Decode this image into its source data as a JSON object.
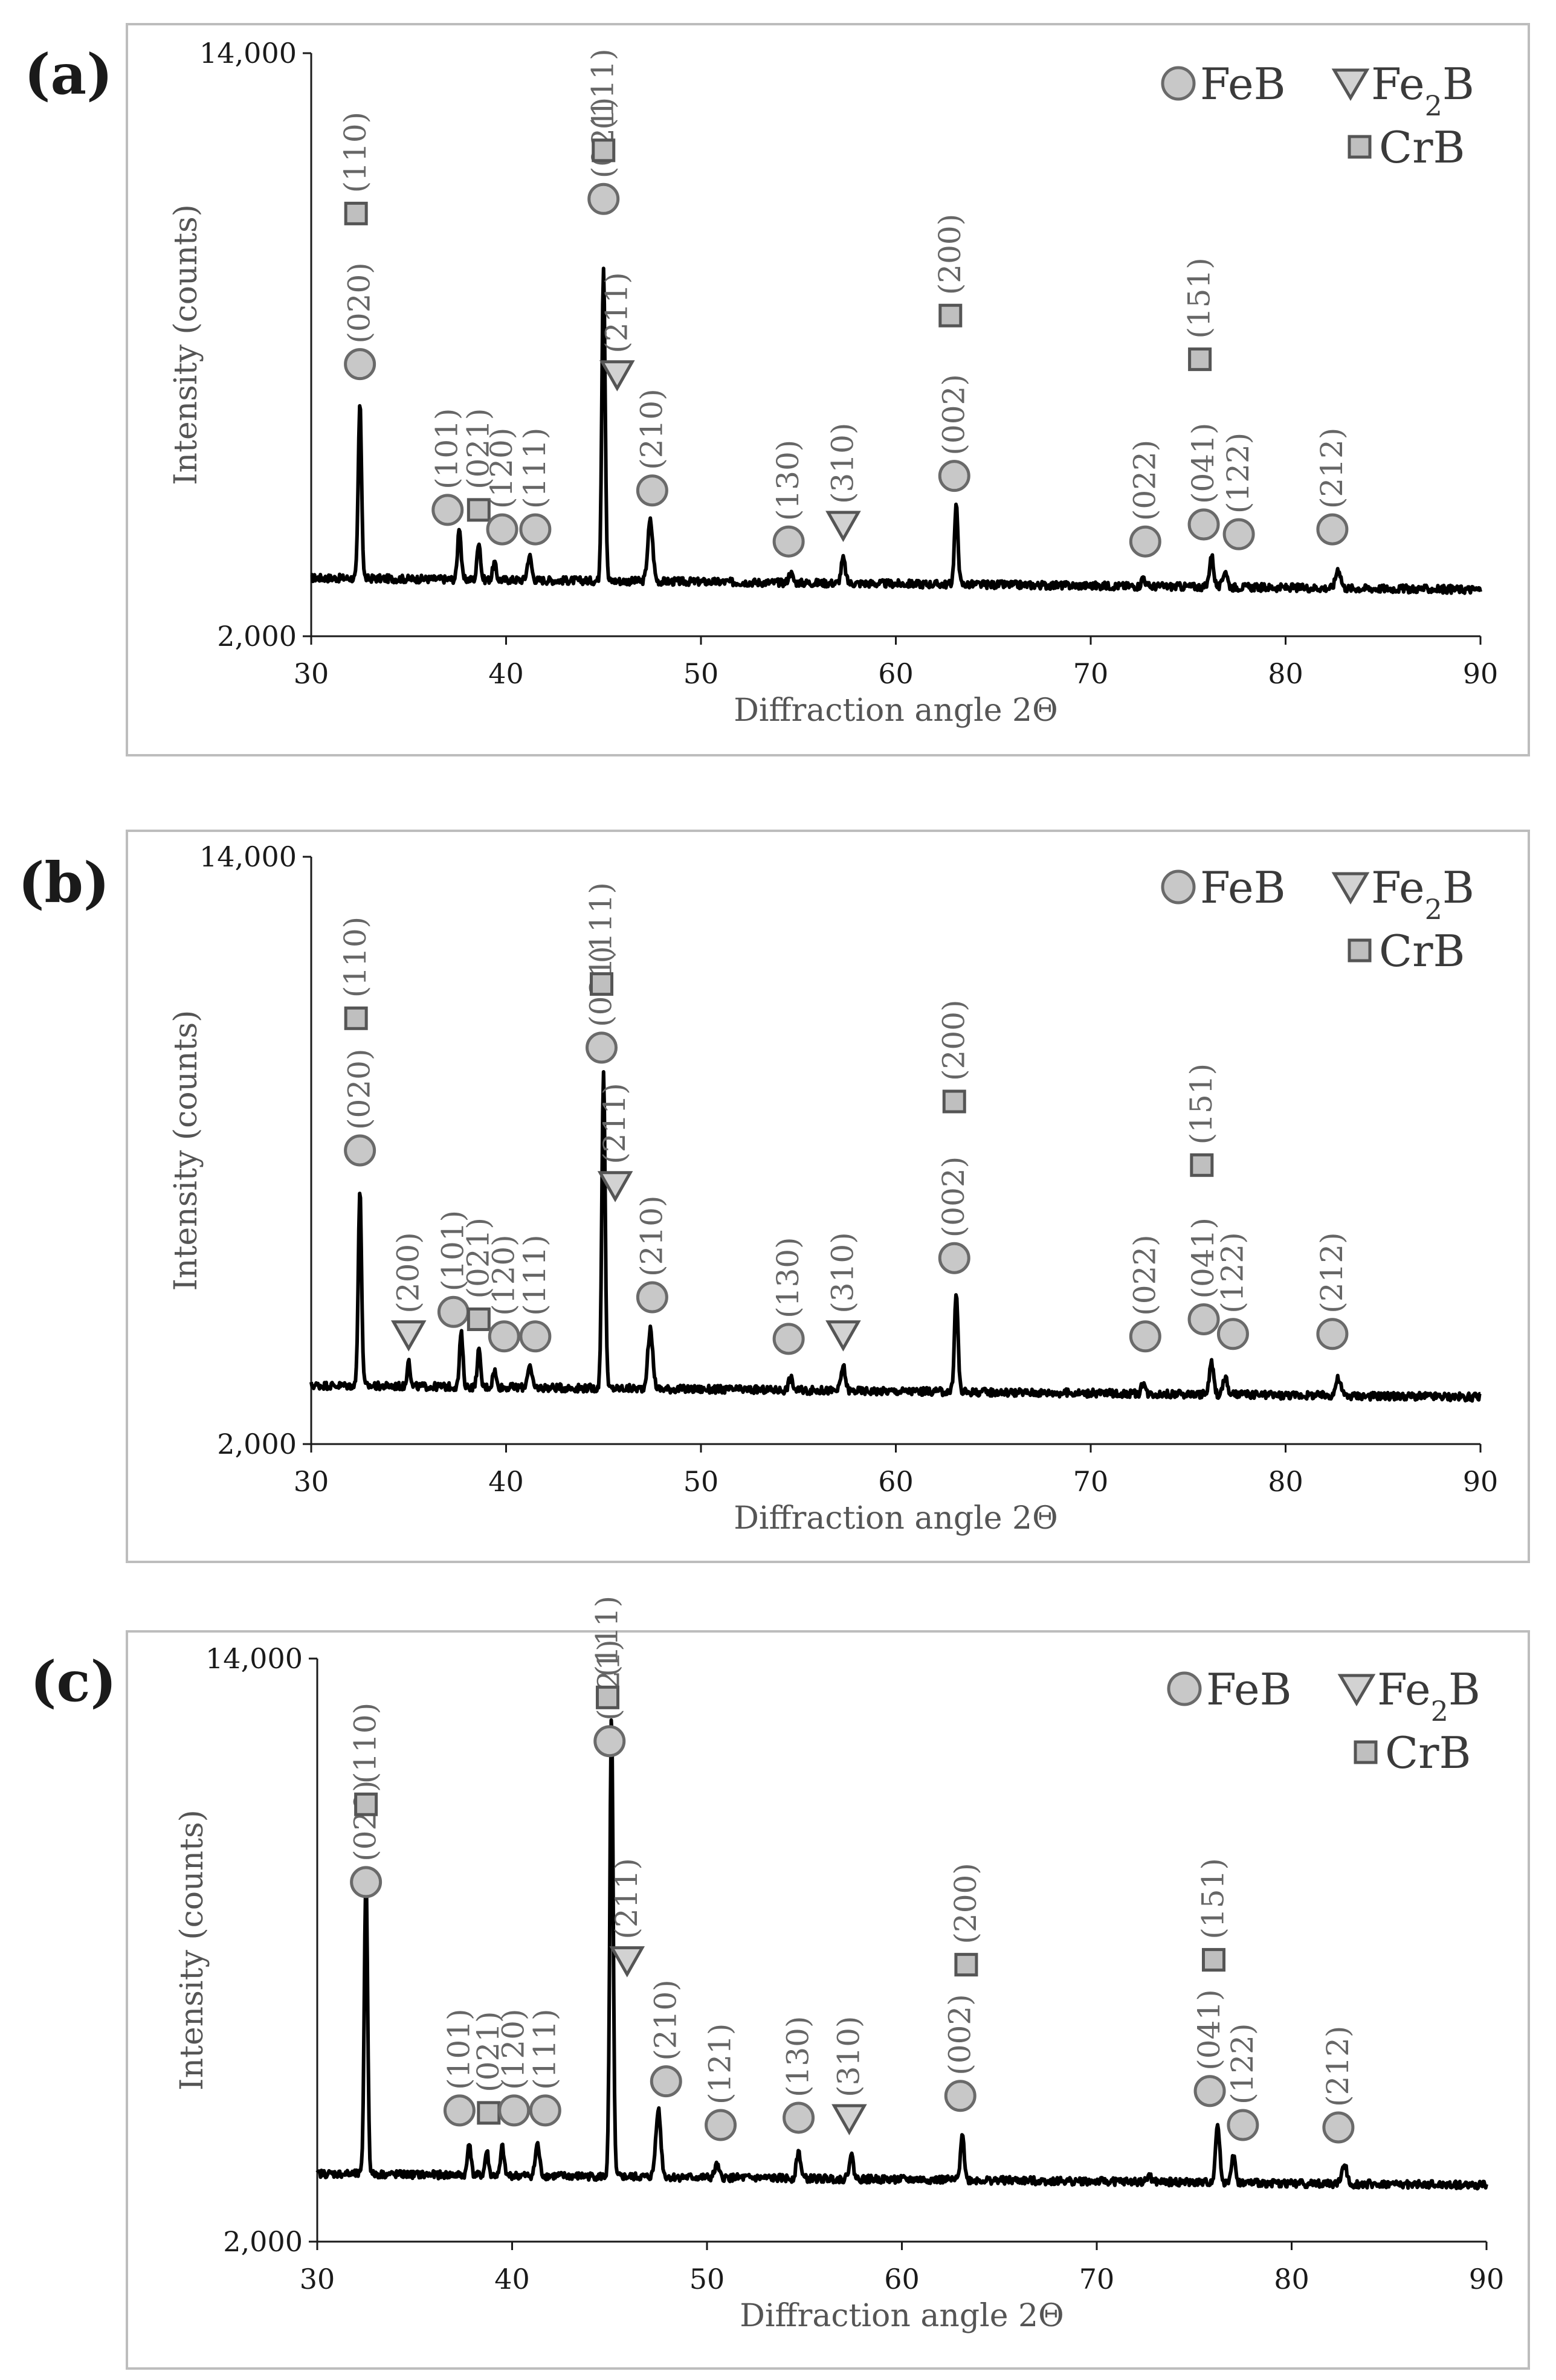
{
  "figure": {
    "description_free": true
  },
  "legend": {
    "feb": "FeB",
    "fe2b_main": "Fe",
    "fe2b_sub": "2",
    "fe2b_tail": "B",
    "crb": "CrB"
  },
  "colors": {
    "circle_fill": "#c8c8c8",
    "circle_stroke": "#6a6a6a",
    "square_fill": "#bfbfbf",
    "square_stroke": "#555555",
    "triangle_fill": "#d2d2d2",
    "triangle_stroke": "#555555",
    "trace": "#000000",
    "frame": "#bdbdbd"
  },
  "chart_data": [
    {
      "panel": "(a)",
      "type": "line",
      "xlabel": "Diffraction angle 2Θ",
      "ylabel": "Intensity (counts)",
      "xlim": [
        30,
        90
      ],
      "ylim": [
        2000,
        14000
      ],
      "xticks": [
        "30",
        "40",
        "50",
        "60",
        "70",
        "80",
        "90"
      ],
      "yticks": [
        "2,000",
        "14,000"
      ],
      "baseline": 3200,
      "peaks": [
        {
          "x": 32.5,
          "y": 6800,
          "w": 0.12
        },
        {
          "x": 37.6,
          "y": 4300,
          "w": 0.12
        },
        {
          "x": 38.6,
          "y": 4000,
          "w": 0.12
        },
        {
          "x": 39.4,
          "y": 3550,
          "w": 0.12
        },
        {
          "x": 41.2,
          "y": 3700,
          "w": 0.15
        },
        {
          "x": 45.0,
          "y": 9700,
          "w": 0.12
        },
        {
          "x": 47.4,
          "y": 4450,
          "w": 0.18
        },
        {
          "x": 54.6,
          "y": 3400,
          "w": 0.15
        },
        {
          "x": 57.3,
          "y": 3700,
          "w": 0.15
        },
        {
          "x": 63.1,
          "y": 4800,
          "w": 0.13
        },
        {
          "x": 72.7,
          "y": 3400,
          "w": 0.12
        },
        {
          "x": 76.2,
          "y": 3850,
          "w": 0.15
        },
        {
          "x": 76.9,
          "y": 3550,
          "w": 0.15
        },
        {
          "x": 82.7,
          "y": 3600,
          "w": 0.18
        }
      ],
      "markers": [
        {
          "type": "circle",
          "x": 32.5,
          "y": 7600,
          "label": "(020)"
        },
        {
          "type": "square",
          "x": 32.3,
          "y": 10700,
          "label": "(110)"
        },
        {
          "type": "circle",
          "x": 37.0,
          "y": 4600,
          "label": "(101)"
        },
        {
          "type": "square",
          "x": 38.6,
          "y": 4600,
          "label": "(021)"
        },
        {
          "type": "circle",
          "x": 39.8,
          "y": 4200,
          "label": "(120)"
        },
        {
          "type": "circle",
          "x": 41.5,
          "y": 4200,
          "label": "(111)"
        },
        {
          "type": "circle",
          "x": 45.0,
          "y": 11000,
          "label": "(021)"
        },
        {
          "type": "square",
          "x": 45.0,
          "y": 12000,
          "label": "(111)"
        },
        {
          "type": "triangle",
          "x": 45.7,
          "y": 7400,
          "label": "(211)"
        },
        {
          "type": "circle",
          "x": 47.5,
          "y": 5000,
          "label": "(210)"
        },
        {
          "type": "circle",
          "x": 54.5,
          "y": 3950,
          "label": "(130)"
        },
        {
          "type": "triangle",
          "x": 57.3,
          "y": 4300,
          "label": "(310)"
        },
        {
          "type": "circle",
          "x": 63.0,
          "y": 5300,
          "label": "(002)"
        },
        {
          "type": "square",
          "x": 62.8,
          "y": 8600,
          "label": "(200)"
        },
        {
          "type": "circle",
          "x": 72.8,
          "y": 3950,
          "label": "(022)"
        },
        {
          "type": "circle",
          "x": 75.8,
          "y": 4300,
          "label": "(041)"
        },
        {
          "type": "square",
          "x": 75.6,
          "y": 7700,
          "label": "(151)"
        },
        {
          "type": "circle",
          "x": 77.6,
          "y": 4100,
          "label": "(122)"
        },
        {
          "type": "circle",
          "x": 82.4,
          "y": 4200,
          "label": "(212)"
        }
      ]
    },
    {
      "panel": "(b)",
      "type": "line",
      "xlabel": "Diffraction angle 2Θ",
      "ylabel": "Intensity (counts)",
      "xlim": [
        30,
        90
      ],
      "ylim": [
        2000,
        14000
      ],
      "xticks": [
        "30",
        "40",
        "50",
        "60",
        "70",
        "80",
        "90"
      ],
      "yticks": [
        "2,000",
        "14,000"
      ],
      "baseline": 3200,
      "peaks": [
        {
          "x": 32.5,
          "y": 7200,
          "w": 0.12
        },
        {
          "x": 35.0,
          "y": 3800,
          "w": 0.1
        },
        {
          "x": 37.7,
          "y": 4300,
          "w": 0.12
        },
        {
          "x": 38.6,
          "y": 3950,
          "w": 0.12
        },
        {
          "x": 39.4,
          "y": 3550,
          "w": 0.12
        },
        {
          "x": 41.2,
          "y": 3650,
          "w": 0.15
        },
        {
          "x": 45.0,
          "y": 9700,
          "w": 0.12
        },
        {
          "x": 47.4,
          "y": 4400,
          "w": 0.18
        },
        {
          "x": 54.6,
          "y": 3450,
          "w": 0.15
        },
        {
          "x": 57.3,
          "y": 3700,
          "w": 0.15
        },
        {
          "x": 63.1,
          "y": 5200,
          "w": 0.13
        },
        {
          "x": 72.7,
          "y": 3450,
          "w": 0.12
        },
        {
          "x": 76.2,
          "y": 3850,
          "w": 0.15
        },
        {
          "x": 76.9,
          "y": 3550,
          "w": 0.15
        },
        {
          "x": 82.7,
          "y": 3550,
          "w": 0.18
        }
      ],
      "markers": [
        {
          "type": "circle",
          "x": 32.5,
          "y": 8000,
          "label": "(020)"
        },
        {
          "type": "square",
          "x": 32.3,
          "y": 10700,
          "label": "(110)"
        },
        {
          "type": "triangle",
          "x": 35.0,
          "y": 4250,
          "label": "(200)"
        },
        {
          "type": "circle",
          "x": 37.3,
          "y": 4700,
          "label": "(101)"
        },
        {
          "type": "square",
          "x": 38.6,
          "y": 4550,
          "label": "(021)"
        },
        {
          "type": "circle",
          "x": 39.9,
          "y": 4200,
          "label": "(120)"
        },
        {
          "type": "circle",
          "x": 41.5,
          "y": 4200,
          "label": "(111)"
        },
        {
          "type": "circle",
          "x": 44.9,
          "y": 10100,
          "label": "(021)"
        },
        {
          "type": "square",
          "x": 44.9,
          "y": 11400,
          "label": "(111)"
        },
        {
          "type": "triangle",
          "x": 45.6,
          "y": 7300,
          "label": "(211)"
        },
        {
          "type": "circle",
          "x": 47.5,
          "y": 5000,
          "label": "(210)"
        },
        {
          "type": "circle",
          "x": 54.5,
          "y": 4150,
          "label": "(130)"
        },
        {
          "type": "triangle",
          "x": 57.3,
          "y": 4250,
          "label": "(310)"
        },
        {
          "type": "circle",
          "x": 63.0,
          "y": 5800,
          "label": "(002)"
        },
        {
          "type": "square",
          "x": 63.0,
          "y": 9000,
          "label": "(200)"
        },
        {
          "type": "circle",
          "x": 72.8,
          "y": 4200,
          "label": "(022)"
        },
        {
          "type": "circle",
          "x": 75.8,
          "y": 4550,
          "label": "(041)"
        },
        {
          "type": "square",
          "x": 75.7,
          "y": 7700,
          "label": "(151)"
        },
        {
          "type": "circle",
          "x": 77.3,
          "y": 4250,
          "label": "(122)"
        },
        {
          "type": "circle",
          "x": 82.4,
          "y": 4250,
          "label": "(212)"
        }
      ]
    },
    {
      "panel": "(c)",
      "type": "line",
      "xlabel": "Diffraction angle 2Θ",
      "ylabel": "Intensity (counts)",
      "xlim": [
        30,
        90
      ],
      "ylim": [
        2000,
        14000
      ],
      "xticks": [
        "30",
        "40",
        "50",
        "60",
        "70",
        "80",
        "90"
      ],
      "yticks": [
        "2,000",
        "14,000"
      ],
      "baseline": 3400,
      "peaks": [
        {
          "x": 32.5,
          "y": 9600,
          "w": 0.12
        },
        {
          "x": 37.8,
          "y": 4100,
          "w": 0.12
        },
        {
          "x": 38.7,
          "y": 3900,
          "w": 0.12
        },
        {
          "x": 39.5,
          "y": 4000,
          "w": 0.12
        },
        {
          "x": 41.3,
          "y": 4050,
          "w": 0.15
        },
        {
          "x": 45.1,
          "y": 12900,
          "w": 0.12
        },
        {
          "x": 47.5,
          "y": 4800,
          "w": 0.18
        },
        {
          "x": 50.5,
          "y": 3650,
          "w": 0.15
        },
        {
          "x": 54.7,
          "y": 3950,
          "w": 0.15
        },
        {
          "x": 57.4,
          "y": 3900,
          "w": 0.15
        },
        {
          "x": 63.1,
          "y": 4400,
          "w": 0.13
        },
        {
          "x": 72.7,
          "y": 3550,
          "w": 0.12
        },
        {
          "x": 76.2,
          "y": 4600,
          "w": 0.15
        },
        {
          "x": 77.0,
          "y": 3950,
          "w": 0.15
        },
        {
          "x": 82.7,
          "y": 3800,
          "w": 0.18
        }
      ],
      "markers": [
        {
          "type": "circle",
          "x": 32.5,
          "y": 9400,
          "label": "(020)"
        },
        {
          "type": "square",
          "x": 32.5,
          "y": 11000,
          "label": "(110)"
        },
        {
          "type": "circle",
          "x": 37.3,
          "y": 4700,
          "label": "(101)"
        },
        {
          "type": "square",
          "x": 38.8,
          "y": 4650,
          "label": "(021)"
        },
        {
          "type": "circle",
          "x": 40.1,
          "y": 4700,
          "label": "(120)"
        },
        {
          "type": "circle",
          "x": 41.7,
          "y": 4700,
          "label": "(111)"
        },
        {
          "type": "circle",
          "x": 45.0,
          "y": 12300,
          "label": "(021)"
        },
        {
          "type": "square",
          "x": 44.9,
          "y": 13200,
          "label": "(111)"
        },
        {
          "type": "triangle",
          "x": 45.9,
          "y": 7800,
          "label": "(211)"
        },
        {
          "type": "circle",
          "x": 47.9,
          "y": 5300,
          "label": "(210)"
        },
        {
          "type": "circle",
          "x": 50.7,
          "y": 4400,
          "label": "(121)"
        },
        {
          "type": "circle",
          "x": 54.7,
          "y": 4550,
          "label": "(130)"
        },
        {
          "type": "triangle",
          "x": 57.3,
          "y": 4550,
          "label": "(310)"
        },
        {
          "type": "circle",
          "x": 63.0,
          "y": 5000,
          "label": "(002)"
        },
        {
          "type": "square",
          "x": 63.3,
          "y": 7700,
          "label": "(200)"
        },
        {
          "type": "circle",
          "x": 75.8,
          "y": 5100,
          "label": "(041)"
        },
        {
          "type": "square",
          "x": 76.0,
          "y": 7800,
          "label": "(151)"
        },
        {
          "type": "circle",
          "x": 77.5,
          "y": 4400,
          "label": "(122)"
        },
        {
          "type": "circle",
          "x": 82.4,
          "y": 4350,
          "label": "(212)"
        }
      ]
    }
  ]
}
